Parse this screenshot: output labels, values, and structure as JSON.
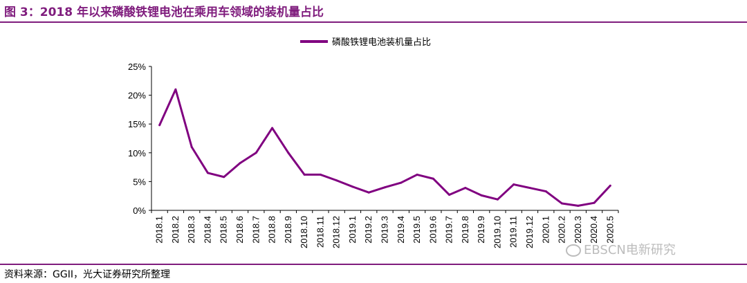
{
  "figure": {
    "title": "图 3：2018 年以来磷酸铁锂电池在乘用车领域的装机量占比",
    "source": "资料来源：GGII，光大证券研究所整理",
    "watermark": "EBSCN电新研究",
    "accent_color": "#7f1c7d",
    "watermark_icon": "wechat-icon"
  },
  "chart_data": {
    "type": "line",
    "legend_position": "top-center",
    "grid": false,
    "categories": [
      "2018.1",
      "2018.2",
      "2018.3",
      "2018.4",
      "2018.5",
      "2018.6",
      "2018.7",
      "2018.8",
      "2018.9",
      "2018.10",
      "2018.11",
      "2018.12",
      "2019.1",
      "2019.2",
      "2019.3",
      "2019.4",
      "2019.5",
      "2019.6",
      "2019.7",
      "2019.8",
      "2019.9",
      "2019.10",
      "2019.11",
      "2019.12",
      "2020.1",
      "2020.2",
      "2020.3",
      "2020.4",
      "2020.5"
    ],
    "series": [
      {
        "name": "磷酸铁锂电池装机量占比",
        "color": "#800080",
        "values": [
          14.8,
          21.0,
          11.0,
          6.5,
          5.8,
          8.2,
          10.0,
          14.3,
          10.0,
          6.2,
          6.2,
          5.2,
          4.1,
          3.1,
          4.0,
          4.8,
          6.2,
          5.5,
          2.7,
          3.9,
          2.6,
          1.9,
          4.5,
          3.9,
          3.3,
          1.2,
          0.8,
          1.3,
          4.3
        ]
      }
    ],
    "ylim": [
      0,
      25
    ],
    "yticks": [
      0,
      5,
      10,
      15,
      20,
      25
    ],
    "ytick_labels": [
      "0%",
      "5%",
      "10%",
      "15%",
      "20%",
      "25%"
    ],
    "xlabel": "",
    "ylabel": ""
  }
}
